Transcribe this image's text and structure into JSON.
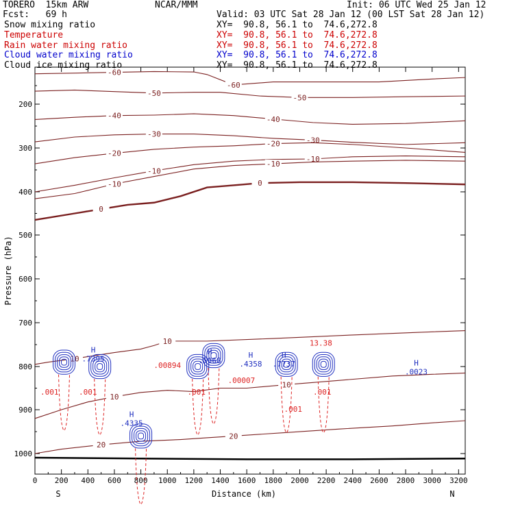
{
  "header": {
    "model": "TORERO  15km ARW",
    "center": "NCAR/MMM",
    "init": "Init: 06 UTC Wed 25 Jan 12",
    "fcst": "Fcst:   69 h",
    "valid": "Valid: 03 UTC Sat 28 Jan 12 (00 LST Sat 28 Jan 12)",
    "fields": [
      {
        "label": "Snow mixing ratio",
        "color": "#000000",
        "xy": "XY=  90.8, 56.1 to  74.6,272.8"
      },
      {
        "label": "Temperature",
        "color": "#cc0000",
        "xy": "XY=  90.8, 56.1 to  74.6,272.8"
      },
      {
        "label": "Rain water mixing ratio",
        "color": "#cc0000",
        "xy": "XY=  90.8, 56.1 to  74.6,272.8"
      },
      {
        "label": "Cloud water mixing ratio",
        "color": "#0000cc",
        "xy": "XY=  90.8, 56.1 to  74.6,272.8"
      },
      {
        "label": "Cloud ice mixing ratio",
        "color": "#000000",
        "xy": "XY=  90.8, 56.1 to  74.6,272.8"
      }
    ]
  },
  "chart_data": {
    "type": "contour cross-section",
    "xlabel": "Distance (km)",
    "ylabel": "Pressure (hPa)",
    "xlim": [
      0,
      3250
    ],
    "ylim": [
      1050,
      100
    ],
    "x_ticks": [
      0,
      200,
      400,
      600,
      800,
      1000,
      1200,
      1400,
      1600,
      1800,
      2000,
      2200,
      2400,
      2600,
      2800,
      3000,
      3200
    ],
    "y_ticks": [
      200,
      300,
      400,
      500,
      600,
      700,
      800,
      900,
      1000
    ],
    "x_end_labels": {
      "left": "S",
      "right": "N"
    },
    "colors": {
      "temperature": "#7a1f1f",
      "rain": "#dd2222",
      "cloud_water": "#1f2fbf",
      "ground": "#000000"
    },
    "temperature_contours": [
      {
        "value": -60,
        "label": "-60",
        "points": [
          [
            0,
            118
          ],
          [
            300,
            116
          ],
          [
            600,
            114
          ],
          [
            900,
            112
          ],
          [
            1200,
            113
          ],
          [
            1300,
            120
          ],
          [
            1500,
            148
          ],
          [
            1800,
            140
          ],
          [
            2200,
            140
          ],
          [
            2600,
            140
          ],
          [
            3000,
            132
          ],
          [
            3250,
            128
          ]
        ]
      },
      {
        "value": -50,
        "label": "-50",
        "points": [
          [
            0,
            165
          ],
          [
            300,
            162
          ],
          [
            600,
            166
          ],
          [
            900,
            170
          ],
          [
            1200,
            168
          ],
          [
            1400,
            168
          ],
          [
            1700,
            178
          ],
          [
            2000,
            182
          ],
          [
            2400,
            182
          ],
          [
            2800,
            180
          ],
          [
            3250,
            178
          ]
        ]
      },
      {
        "value": -40,
        "label": "-40",
        "points": [
          [
            0,
            235
          ],
          [
            300,
            230
          ],
          [
            600,
            226
          ],
          [
            900,
            225
          ],
          [
            1200,
            222
          ],
          [
            1500,
            226
          ],
          [
            1800,
            234
          ],
          [
            2100,
            242
          ],
          [
            2400,
            246
          ],
          [
            2800,
            244
          ],
          [
            3250,
            238
          ]
        ]
      },
      {
        "value": -30,
        "label": "-30",
        "points": [
          [
            0,
            286
          ],
          [
            300,
            275
          ],
          [
            600,
            270
          ],
          [
            900,
            268
          ],
          [
            1200,
            268
          ],
          [
            1500,
            272
          ],
          [
            1800,
            278
          ],
          [
            2100,
            282
          ],
          [
            2400,
            287
          ],
          [
            2800,
            292
          ],
          [
            3250,
            288
          ]
        ]
      },
      {
        "value": -20,
        "label": "-20",
        "points": [
          [
            0,
            336
          ],
          [
            300,
            322
          ],
          [
            600,
            312
          ],
          [
            900,
            303
          ],
          [
            1200,
            298
          ],
          [
            1500,
            295
          ],
          [
            1800,
            290
          ],
          [
            2100,
            288
          ],
          [
            2400,
            292
          ],
          [
            2800,
            300
          ],
          [
            3250,
            310
          ]
        ]
      },
      {
        "value": -10,
        "label": "-10",
        "points": [
          [
            0,
            400
          ],
          [
            300,
            385
          ],
          [
            600,
            368
          ],
          [
            900,
            352
          ],
          [
            1200,
            338
          ],
          [
            1500,
            330
          ],
          [
            1800,
            326
          ],
          [
            2100,
            325
          ],
          [
            2400,
            320
          ],
          [
            2800,
            318
          ],
          [
            3250,
            320
          ]
        ]
      },
      {
        "value": -10,
        "label": "-10",
        "points": [
          [
            0,
            416
          ],
          [
            300,
            404
          ],
          [
            600,
            382
          ],
          [
            900,
            365
          ],
          [
            1200,
            348
          ],
          [
            1500,
            340
          ],
          [
            1800,
            336
          ],
          [
            2100,
            332
          ],
          [
            2400,
            330
          ],
          [
            2800,
            328
          ],
          [
            3250,
            330
          ]
        ]
      },
      {
        "value": 0,
        "label": "0",
        "points": [
          [
            0,
            465
          ],
          [
            100,
            460
          ],
          [
            300,
            450
          ],
          [
            500,
            440
          ],
          [
            700,
            430
          ],
          [
            900,
            425
          ],
          [
            1100,
            410
          ],
          [
            1300,
            390
          ],
          [
            1500,
            385
          ],
          [
            1700,
            380
          ],
          [
            2000,
            378
          ],
          [
            2400,
            378
          ],
          [
            2800,
            380
          ],
          [
            3250,
            383
          ]
        ]
      },
      {
        "value": 10,
        "label": "10",
        "points": [
          [
            0,
            795
          ],
          [
            100,
            790
          ],
          [
            300,
            782
          ],
          [
            600,
            768
          ],
          [
            800,
            760
          ],
          [
            900,
            752
          ],
          [
            1000,
            742
          ],
          [
            1300,
            742
          ],
          [
            1800,
            736
          ],
          [
            2400,
            728
          ],
          [
            2900,
            722
          ],
          [
            3250,
            718
          ]
        ]
      },
      {
        "value": 10,
        "label": "10",
        "points": [
          [
            0,
            920
          ],
          [
            200,
            900
          ],
          [
            400,
            882
          ],
          [
            600,
            870
          ],
          [
            800,
            860
          ],
          [
            1000,
            855
          ],
          [
            1200,
            858
          ],
          [
            1400,
            850
          ],
          [
            1600,
            850
          ],
          [
            1900,
            842
          ],
          [
            2300,
            832
          ],
          [
            2700,
            822
          ],
          [
            3000,
            818
          ],
          [
            3250,
            815
          ]
        ]
      },
      {
        "value": 20,
        "label": "20",
        "points": [
          [
            0,
            1000
          ],
          [
            200,
            990
          ],
          [
            500,
            980
          ],
          [
            800,
            972
          ],
          [
            1100,
            968
          ],
          [
            1300,
            964
          ],
          [
            1500,
            960
          ],
          [
            1900,
            952
          ],
          [
            2300,
            944
          ],
          [
            2700,
            937
          ],
          [
            3000,
            930
          ],
          [
            3250,
            925
          ]
        ]
      }
    ],
    "rain_mixing_ratio_labels": [
      {
        "x": 110,
        "p": 865,
        "text": ".001"
      },
      {
        "x": 400,
        "p": 865,
        "text": ".001"
      },
      {
        "x": 1220,
        "p": 865,
        "text": ".001"
      },
      {
        "x": 1950,
        "p": 905,
        "text": ".001"
      },
      {
        "x": 2170,
        "p": 865,
        "text": ".001"
      },
      {
        "x": 1560,
        "p": 838,
        "text": ".00007"
      },
      {
        "x": 1000,
        "p": 803,
        "text": ".00894"
      },
      {
        "x": 2160,
        "p": 752,
        "text": "13.38"
      }
    ],
    "cloud_water_labels": [
      {
        "x": 440,
        "p": 788,
        "text": ".7395"
      },
      {
        "x": 1320,
        "p": 792,
        "text": ".5968"
      },
      {
        "x": 1630,
        "p": 800,
        "text": ".4358"
      },
      {
        "x": 1880,
        "p": 800,
        "text": ".7737"
      },
      {
        "x": 730,
        "p": 937,
        "text": ".4335"
      },
      {
        "x": 2880,
        "p": 818,
        "text": ".0023"
      }
    ],
    "cells": [
      {
        "x": 220,
        "p": 790
      },
      {
        "x": 490,
        "p": 800
      },
      {
        "x": 1230,
        "p": 800
      },
      {
        "x": 1350,
        "p": 775
      },
      {
        "x": 1900,
        "p": 795
      },
      {
        "x": 2180,
        "p": 795
      },
      {
        "x": 800,
        "p": 960
      }
    ]
  }
}
